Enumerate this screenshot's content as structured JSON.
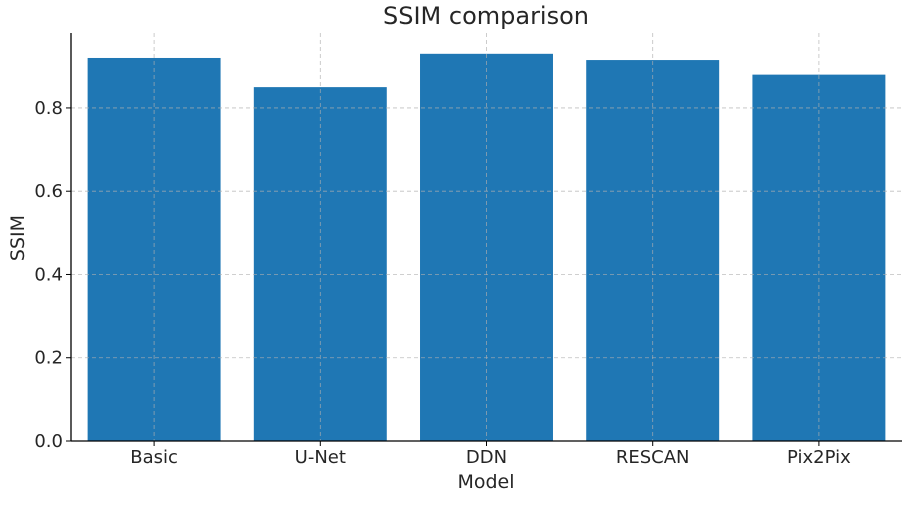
{
  "chart_data": {
    "type": "bar",
    "title": "SSIM comparison",
    "xlabel": "Model",
    "ylabel": "SSIM",
    "categories": [
      "Basic",
      "U-Net",
      "DDN",
      "RESCAN",
      "Pix2Pix"
    ],
    "values": [
      0.92,
      0.85,
      0.93,
      0.915,
      0.88
    ],
    "ylim": [
      0,
      0.98
    ],
    "yticks": [
      "0.0",
      "0.2",
      "0.4",
      "0.6",
      "0.8"
    ],
    "grid": true,
    "bar_color": "#1f77b4"
  }
}
